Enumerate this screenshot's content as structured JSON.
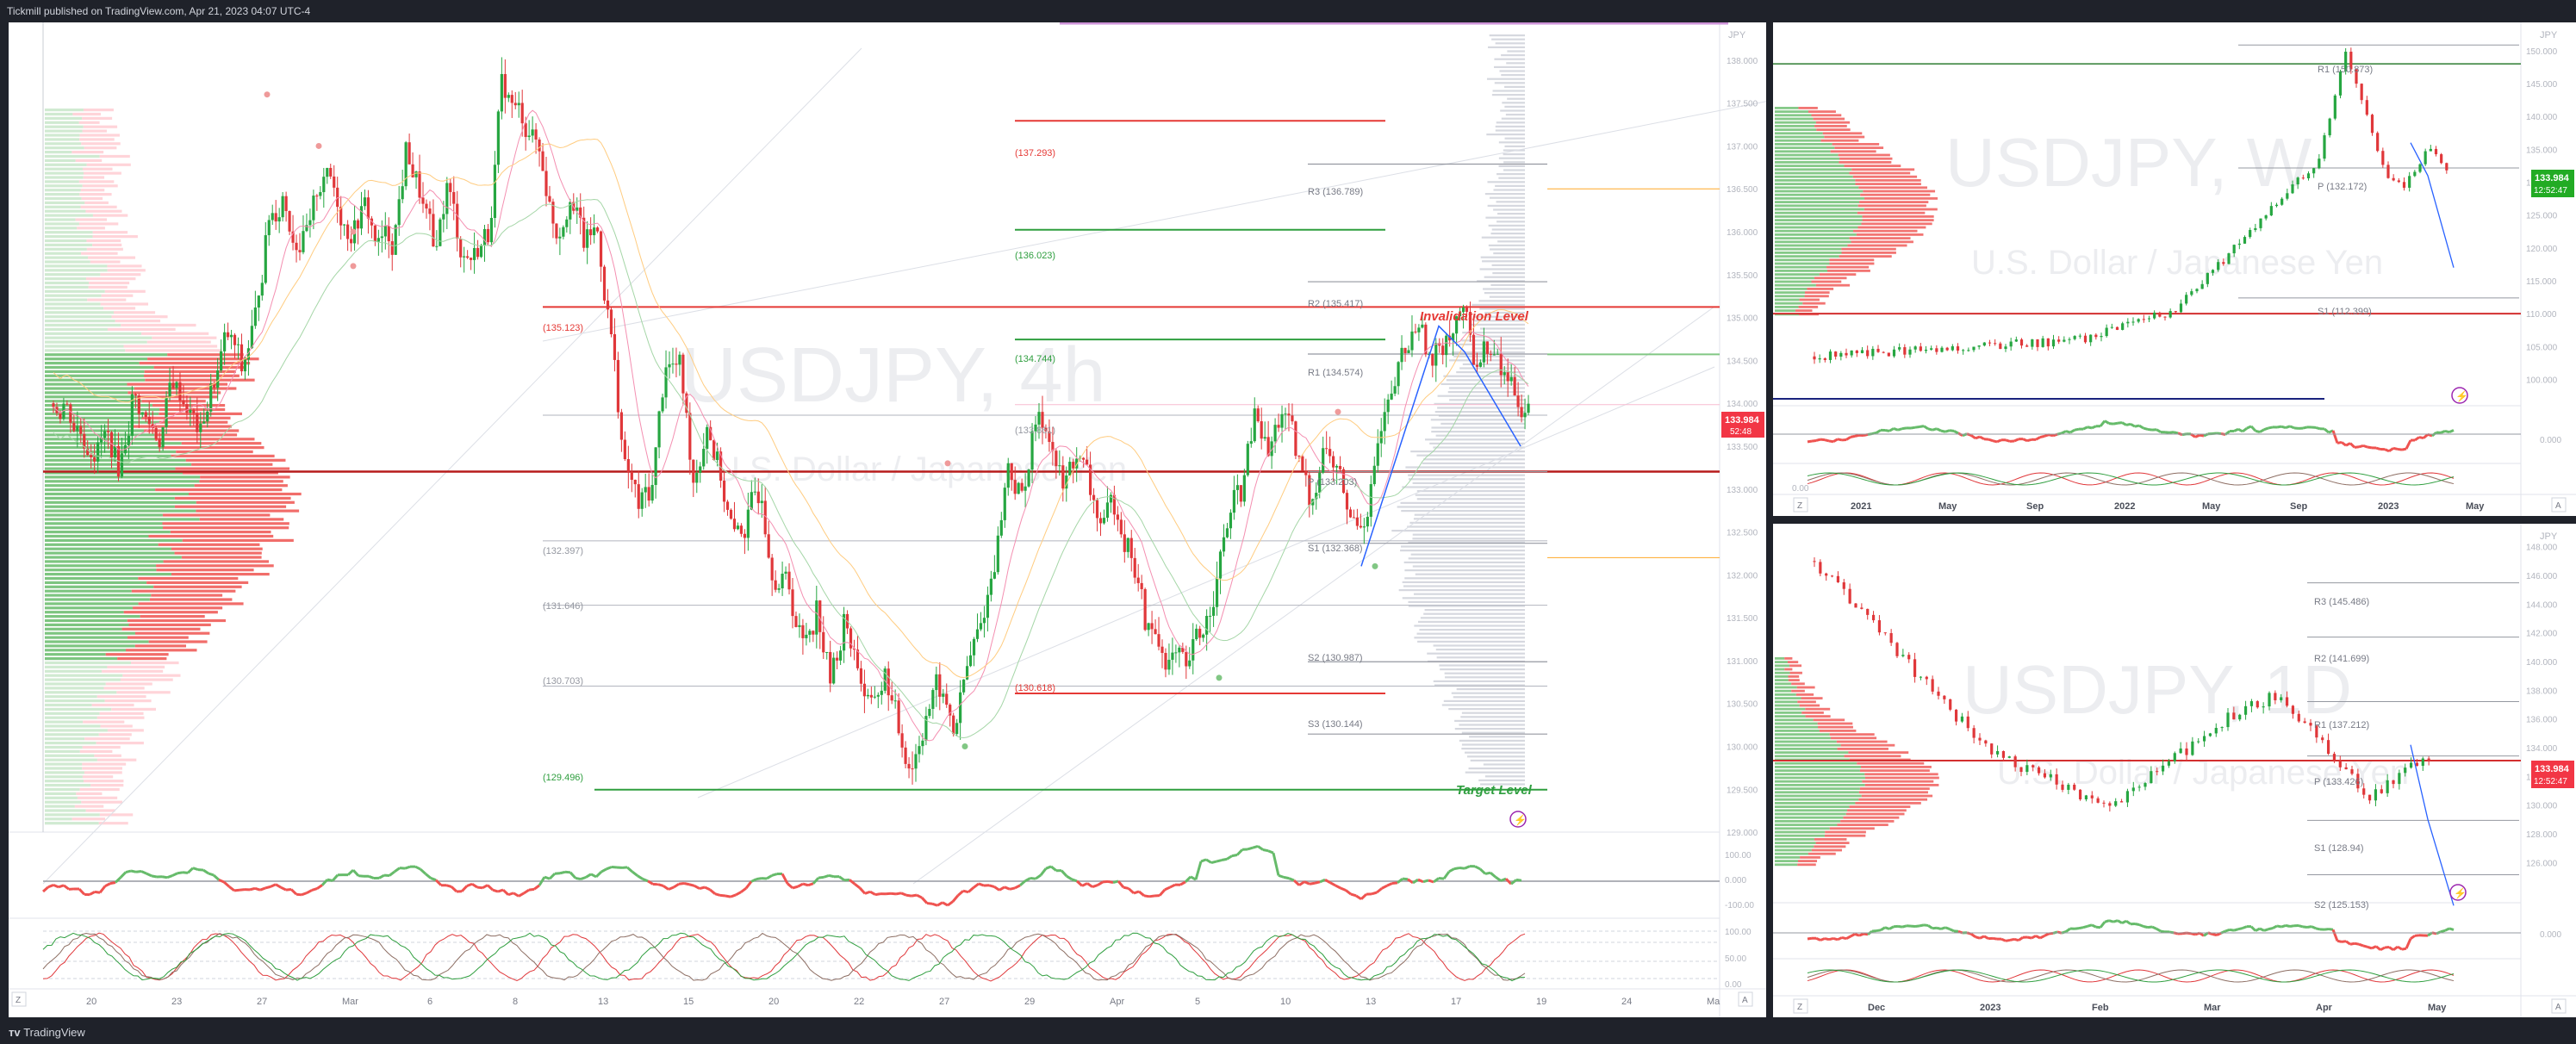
{
  "header": {
    "publisher_line": "Tickmill published on TradingView.com, Apr 21, 2023 04:07 UTC-4"
  },
  "footer": {
    "brand": "TradingView"
  },
  "colors": {
    "up": "#26a641",
    "down": "#e0373a",
    "level_red": "#e53935",
    "level_green": "#2e9e3e",
    "level_gray": "#9598a1",
    "price_tag_red": "#f23645",
    "price_tag_green": "#22ab24",
    "forecast_blue": "#2962ff",
    "signal_purple": "#9c27b0"
  },
  "chart_4h": {
    "watermark_symbol": "USDJPY, 4h",
    "watermark_name": "U.S. Dollar / Japanese Yen",
    "axis_unit": "JPY",
    "price_tag": "133.984",
    "price_tag_timer": "52:48",
    "annotation_invalidation": "Invalidation Level",
    "annotation_target": "Target Level",
    "level_labels": {
      "r_137": "(137.293)",
      "r_136": "(136.023)",
      "r_134": "(134.744)",
      "r_133": "(133.861)",
      "r_135": "(135.123)",
      "r_132": "(132.397)",
      "r_131": "(131.646)",
      "r_130": "(130.703)",
      "r_130b": "(130.618)",
      "r_129": "(129.496)",
      "p_r3": "R3 (136.789)",
      "p_r2": "R2 (135.417)",
      "p_r1": "R1 (134.574)",
      "p_p": "P (133.203)",
      "p_s1": "S1 (132.368)",
      "p_s2": "S2 (130.987)",
      "p_s3": "S3 (130.144)"
    },
    "x_ticks": [
      "20",
      "23",
      "27",
      "Mar",
      "6",
      "8",
      "13",
      "15",
      "20",
      "22",
      "27",
      "29",
      "Apr",
      "5",
      "10",
      "13",
      "17",
      "19",
      "24",
      "Ma"
    ],
    "osc_ticks": [
      "100.00",
      "0.000",
      "-100.00"
    ],
    "stoch_ticks": [
      "100.00",
      "50.00",
      "0.00"
    ]
  },
  "chart_weekly": {
    "watermark_symbol": "USDJPY, W",
    "watermark_name": "U.S. Dollar / Japanese Yen",
    "axis_unit": "JPY",
    "price_tag": "133.984",
    "price_tag_timer": "12:52:47",
    "level_labels": {
      "r1": "R1 (150.873)",
      "p": "P (132.172)",
      "s1": "S1 (112.399)"
    },
    "x_ticks": [
      "2021",
      "May",
      "Sep",
      "2022",
      "May",
      "Sep",
      "2023",
      "May"
    ],
    "osc_ticks": [
      "0.000"
    ],
    "stoch_ticks": [
      "100.00",
      "0.00"
    ]
  },
  "chart_daily": {
    "watermark_symbol": "USDJPY, 1D",
    "watermark_name": "U.S. Dollar / Japanese Yen",
    "axis_unit": "JPY",
    "price_tag": "133.984",
    "price_tag_timer": "12:52:47",
    "level_labels": {
      "r3": "R3 (145.486)",
      "r2": "R2 (141.699)",
      "r1": "R1 (137.212)",
      "p": "P (133.426)",
      "s1": "S1 (128.94)",
      "s2": "S2 (125.153)"
    },
    "x_ticks": [
      "Dec",
      "2023",
      "Feb",
      "Mar",
      "Apr",
      "May"
    ],
    "osc_ticks": [
      "0.000"
    ],
    "stoch_ticks": []
  },
  "chart_data": [
    {
      "type": "candlestick",
      "title": "USDJPY, 4h",
      "ylabel": "JPY",
      "ylim": [
        128.8,
        138.3
      ],
      "y_ticks": [
        129.0,
        129.5,
        130.0,
        130.5,
        131.0,
        131.5,
        132.0,
        132.5,
        133.0,
        133.5,
        134.0,
        134.5,
        135.0,
        135.5,
        136.0,
        136.5,
        137.0,
        137.5,
        138.0
      ],
      "levels": {
        "red": [
          137.293,
          135.123,
          130.618
        ],
        "green": [
          136.023,
          134.744,
          129.496
        ],
        "pivots": {
          "R3": 136.789,
          "R2": 135.417,
          "R1": 134.574,
          "P": 133.203,
          "S1": 132.368,
          "S2": 130.987,
          "S3": 130.144
        },
        "last_price": 133.984
      },
      "close_path": [
        134.0,
        133.7,
        133.5,
        133.6,
        133.3,
        134.0,
        133.8,
        133.6,
        134.3,
        134.0,
        133.6,
        134.3,
        134.8,
        134.4,
        135.0,
        136.2,
        136.4,
        135.9,
        136.0,
        136.7,
        136.4,
        136.0,
        136.3,
        135.8,
        135.9,
        136.9,
        136.5,
        135.8,
        136.5,
        135.8,
        135.7,
        136.0,
        137.7,
        137.4,
        137.2,
        136.8,
        136.0,
        136.5,
        135.9,
        136.0,
        134.8,
        133.2,
        132.8,
        133.0,
        134.5,
        134.4,
        133.1,
        133.8,
        133.2,
        132.4,
        132.6,
        133.0,
        132.0,
        131.9,
        131.2,
        131.6,
        130.8,
        131.4,
        131.0,
        130.4,
        130.8,
        130.2,
        129.8,
        130.4,
        130.7,
        130.2,
        130.9,
        131.4,
        132.2,
        133.3,
        132.9,
        133.8,
        133.7,
        133.0,
        133.4,
        133.0,
        132.5,
        132.8,
        132.3,
        131.5,
        131.2,
        131.0,
        130.8,
        131.3,
        131.8,
        132.6,
        133.0,
        133.8,
        133.4,
        133.9,
        133.4,
        132.9,
        133.5,
        133.2,
        132.6,
        132.7,
        133.5,
        134.0,
        134.6,
        135.0,
        134.4,
        134.8,
        135.1,
        134.6,
        134.7,
        134.4,
        134.2,
        134.0
      ]
    },
    {
      "type": "candlestick",
      "title": "USDJPY, W",
      "ylabel": "JPY",
      "ylim": [
        96,
        153
      ],
      "y_ticks": [
        100,
        105,
        110,
        115,
        120,
        125,
        130,
        135,
        140,
        145,
        150
      ],
      "levels": {
        "pivots": {
          "R1": 150.873,
          "P": 132.172,
          "S1": 112.399
        },
        "last_price": 133.984
      },
      "x_ticks": [
        "2021",
        "May",
        "Sep",
        "2022",
        "May",
        "Sep",
        "2023",
        "May"
      ]
    },
    {
      "type": "candlestick",
      "title": "USDJPY, 1D",
      "ylabel": "JPY",
      "ylim": [
        125,
        149
      ],
      "y_ticks": [
        126,
        128,
        130,
        132,
        134,
        136,
        138,
        140,
        142,
        144,
        146,
        148
      ],
      "levels": {
        "pivots": {
          "R3": 145.486,
          "R2": 141.699,
          "R1": 137.212,
          "P": 133.426,
          "S1": 128.94,
          "S2": 125.153
        },
        "last_price": 133.984
      },
      "x_ticks": [
        "Dec",
        "2023",
        "Feb",
        "Mar",
        "Apr",
        "May"
      ]
    }
  ]
}
